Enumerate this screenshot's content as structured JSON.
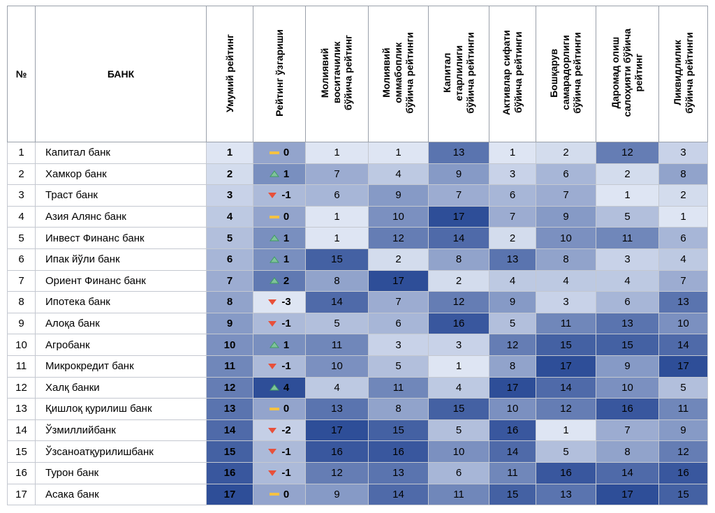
{
  "table": {
    "headers": [
      "№",
      "БАНК",
      "Умумий рейтинг",
      "Рейтинг ўзгариши",
      "Молиявий\nвоситачилик\nбўйича рейтинг",
      "Молиявий\nоммабоплик\nбўйича рейтинги",
      "Капитал\nетарлилиги\nбўйича рейтинги",
      "Активлар сифати\nбўйича рейтинги",
      "Бошқарув\nсамарадорлиги\nбўйича рейтинги",
      "Даромад олиш\nсалоҳияти бўйича\nрейтинг",
      "Ликвидлилик\nбўйича рейтинги"
    ],
    "rows": [
      [
        1,
        "Капитал банк",
        1,
        0,
        1,
        1,
        13,
        1,
        2,
        12,
        3
      ],
      [
        2,
        "Хамкор банк",
        2,
        1,
        7,
        4,
        9,
        3,
        6,
        2,
        8
      ],
      [
        3,
        "Траст банк",
        3,
        -1,
        6,
        9,
        7,
        6,
        7,
        1,
        2
      ],
      [
        4,
        "Азия Алянс банк",
        4,
        0,
        1,
        10,
        17,
        7,
        9,
        5,
        1
      ],
      [
        5,
        "Инвест Финанс банк",
        5,
        1,
        1,
        12,
        14,
        2,
        10,
        11,
        6
      ],
      [
        6,
        "Ипак йўли банк",
        6,
        1,
        15,
        2,
        8,
        13,
        8,
        3,
        4
      ],
      [
        7,
        "Ориент Финанс банк",
        7,
        2,
        8,
        17,
        2,
        4,
        4,
        4,
        7
      ],
      [
        8,
        "Ипотека банк",
        8,
        -3,
        14,
        7,
        12,
        9,
        3,
        6,
        13
      ],
      [
        9,
        "Алоқа банк",
        9,
        -1,
        5,
        6,
        16,
        5,
        11,
        13,
        10
      ],
      [
        10,
        "Агробанк",
        10,
        1,
        11,
        3,
        3,
        12,
        15,
        15,
        14
      ],
      [
        11,
        "Микрокредит банк",
        11,
        -1,
        10,
        5,
        1,
        8,
        17,
        9,
        17
      ],
      [
        12,
        "Халқ банки",
        12,
        4,
        4,
        11,
        4,
        17,
        14,
        10,
        5
      ],
      [
        13,
        "Қишлоқ қурилиш банк",
        13,
        0,
        13,
        8,
        15,
        10,
        12,
        16,
        11
      ],
      [
        14,
        "Ўзмиллийбанк",
        14,
        -2,
        17,
        15,
        5,
        16,
        1,
        7,
        9
      ],
      [
        15,
        "Ўзсаноатқурилишбанк",
        15,
        -1,
        16,
        16,
        10,
        14,
        5,
        8,
        12
      ],
      [
        16,
        "Турон банк",
        16,
        -1,
        12,
        13,
        6,
        11,
        16,
        14,
        16
      ],
      [
        17,
        "Асака банк",
        17,
        0,
        9,
        14,
        11,
        15,
        13,
        17,
        15
      ]
    ]
  }
}
